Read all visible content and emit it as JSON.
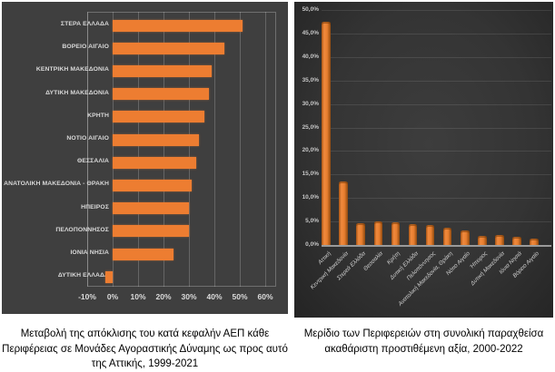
{
  "colors": {
    "bar_orange": "#ED7D31",
    "bar_orange_3d_light": "#F08A3E",
    "bar_orange_3d_dark": "#8F4A10",
    "left_panel_bg": "#3F3F3F",
    "right_panel_bg": "#343434",
    "left_grid": "rgba(255,255,255,0.20)",
    "right_grid": "rgba(255,255,255,0.10)",
    "tick_label": "#D9D9D9",
    "caption_text": "#000000"
  },
  "captions": {
    "left": {
      "lines": [
        "Μεταβολή της απόκλισης του κατά κεφαλήν ΑΕΠ κάθε",
        "Περιφέρειας σε Μονάδες Αγοραστικής Δύναμης ως προς αυτό",
        "της Αττικής, 1999-2021"
      ]
    },
    "right": {
      "lines": [
        "Μερίδιο των Περιφερειών στη συνολική παραχθείσα",
        "ακαθάριστη προστιθέμενη αξία, 2000-2022"
      ]
    }
  },
  "chart_data": [
    {
      "type": "bar",
      "orientation": "horizontal",
      "title": "Μεταβολή της απόκλισης του κατά κεφαλήν ΑΕΠ κάθε Περιφέρειας σε Μονάδες Αγοραστικής Δύναμης ως προς αυτό της Αττικής, 1999-2021",
      "categories": [
        "ΣΤΕΡΑ ΕΛΛΑΔΑ",
        "ΒΟΡΕΙΟ ΑΙΓΑΙΟ",
        "ΚΕΝΤΡΙΚΗ ΜΑΚΕΔΟΝΙΑ",
        "ΔΥΤΙΚΗ ΜΑΚΕΔΟΝΙΑ",
        "ΚΡΗΤΗ",
        "ΝΟΤΙΟ ΑΙΓΑΙΟ",
        "ΘΕΣΣΑΛΙΑ",
        "ΑΝΑΤΟΛΙΚΗ ΜΑΚΕΔΟΝΙΑ - ΘΡΑΚΗ",
        "ΗΠΕΙΡΟΣ",
        "ΠΕΛΟΠΟΝΝΗΣΟΣ",
        "ΙΟΝΙΑ ΝΗΣΙΑ",
        "ΔΥΤΙΚΗ ΕΛΛΑΔΑ"
      ],
      "values": [
        51,
        44,
        39,
        38,
        36,
        34,
        33,
        31,
        30,
        30,
        24,
        -3
      ],
      "xlabel": "",
      "ylabel": "",
      "xlim": [
        -10,
        65
      ],
      "x_tick_values": [
        -10,
        0,
        10,
        20,
        30,
        40,
        50,
        60
      ],
      "x_tick_labels": [
        "-10%",
        "0%",
        "10%",
        "20%",
        "30%",
        "40%",
        "50%",
        "60%"
      ],
      "grid": true,
      "legend": false
    },
    {
      "type": "bar",
      "orientation": "vertical",
      "title": "Μερίδιο των Περιφερειών στη συνολική παραχθείσα ακαθάριστη προστιθέμενη αξία, 2000-2022",
      "categories": [
        "Αττική",
        "Κεντρική Μακεδονία",
        "Στερεά Ελλάδα",
        "Θεσσαλία",
        "Κρήτη",
        "Δυτική Ελλάδα",
        "Πελοπόννησος",
        "Ανατολική Μακεδονία, Θράκη",
        "Νότιο Αιγαίο",
        "Ήπειρος",
        "Δυτική Μακεδονία",
        "Ιόνια Νησιά",
        "Βόρειο Αιγαίο"
      ],
      "values": [
        47.5,
        13.5,
        4.6,
        5.0,
        4.8,
        4.5,
        4.2,
        3.7,
        3.0,
        2.0,
        2.2,
        1.7,
        1.3
      ],
      "xlabel": "",
      "ylabel": "",
      "ylim": [
        0,
        50
      ],
      "y_tick_values": [
        0,
        5,
        10,
        15,
        20,
        25,
        30,
        35,
        40,
        45,
        50
      ],
      "y_tick_labels": [
        "0,0%",
        "5,0%",
        "10,0%",
        "15,0%",
        "20,0%",
        "25,0%",
        "30,0%",
        "35,0%",
        "40,0%",
        "45,0%",
        "50,0%"
      ],
      "grid": true,
      "legend": false
    }
  ]
}
